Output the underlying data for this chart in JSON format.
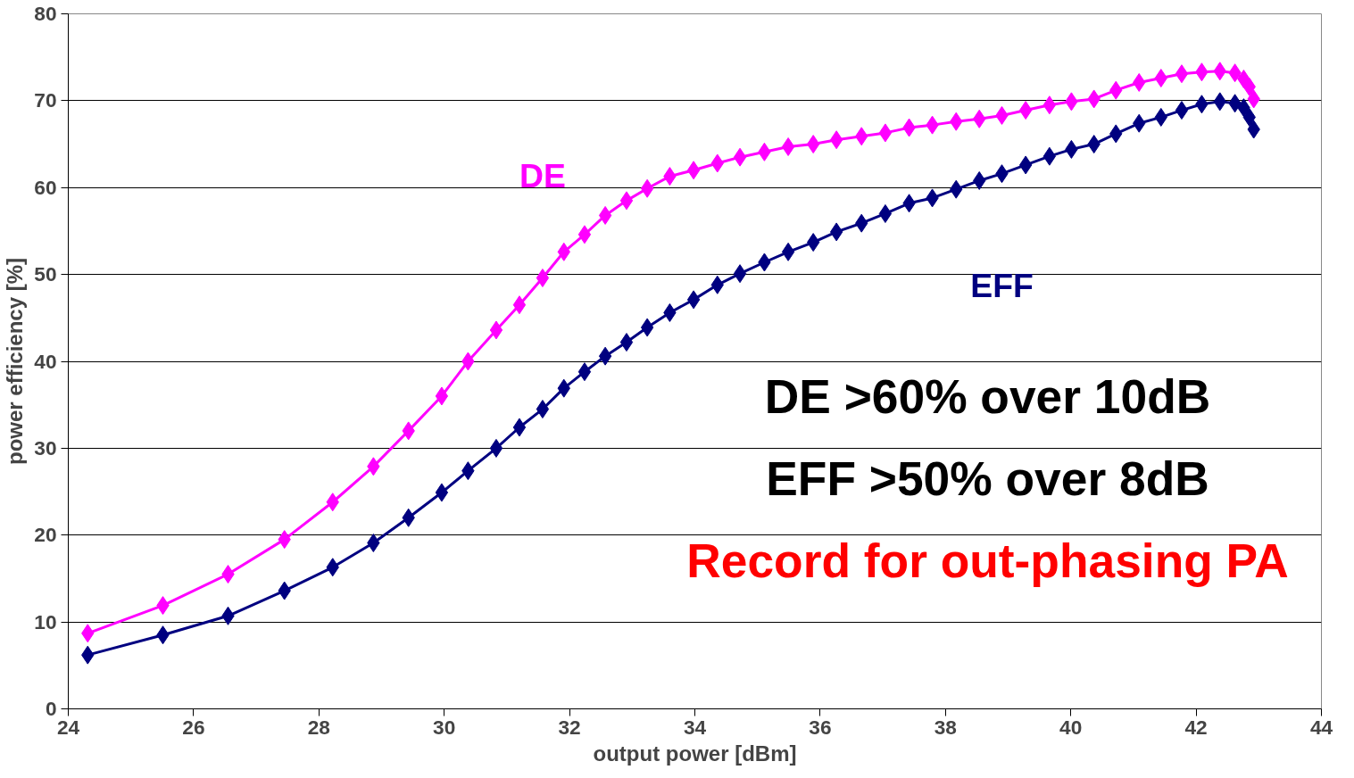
{
  "chart_data": {
    "type": "line",
    "xlabel": "output power [dBm]",
    "ylabel": "power efficiency [%]",
    "xlim": [
      24,
      44
    ],
    "xticks": [
      24,
      26,
      28,
      30,
      32,
      34,
      36,
      38,
      40,
      42,
      44
    ],
    "ylim": [
      0,
      80
    ],
    "yticks": [
      0,
      10,
      20,
      30,
      40,
      50,
      60,
      70,
      80
    ],
    "grid": "y",
    "marker": "diamond",
    "line_style": "solid",
    "series": [
      {
        "name": "DE",
        "color": "#ff00ff",
        "x": [
          24.31,
          25.51,
          26.55,
          27.45,
          28.22,
          28.87,
          29.43,
          29.96,
          30.38,
          30.83,
          31.2,
          31.57,
          31.91,
          32.24,
          32.57,
          32.91,
          33.24,
          33.6,
          33.98,
          34.36,
          34.72,
          35.11,
          35.49,
          35.89,
          36.26,
          36.66,
          37.04,
          37.42,
          37.79,
          38.17,
          38.54,
          38.9,
          39.28,
          39.66,
          40.01,
          40.37,
          40.72,
          41.09,
          41.44,
          41.77,
          42.09,
          42.38,
          42.62,
          42.76,
          42.85,
          42.92
        ],
        "values": [
          8.7,
          11.9,
          15.5,
          19.5,
          23.8,
          27.9,
          32.0,
          36.0,
          40.0,
          43.6,
          46.5,
          49.6,
          52.6,
          54.6,
          56.8,
          58.5,
          59.9,
          61.3,
          62.0,
          62.8,
          63.5,
          64.1,
          64.7,
          65.0,
          65.5,
          65.9,
          66.3,
          66.9,
          67.2,
          67.6,
          67.9,
          68.3,
          68.9,
          69.5,
          69.9,
          70.2,
          71.2,
          72.1,
          72.6,
          73.1,
          73.3,
          73.4,
          73.2,
          72.5,
          71.6,
          70.2
        ]
      },
      {
        "name": "EFF",
        "color": "#000080",
        "x": [
          24.31,
          25.51,
          26.55,
          27.45,
          28.22,
          28.87,
          29.43,
          29.96,
          30.38,
          30.83,
          31.2,
          31.57,
          31.91,
          32.24,
          32.57,
          32.91,
          33.24,
          33.6,
          33.98,
          34.36,
          34.72,
          35.11,
          35.49,
          35.89,
          36.26,
          36.66,
          37.04,
          37.42,
          37.79,
          38.17,
          38.54,
          38.9,
          39.28,
          39.66,
          40.01,
          40.37,
          40.72,
          41.09,
          41.44,
          41.77,
          42.09,
          42.38,
          42.62,
          42.76,
          42.85,
          42.92
        ],
        "values": [
          6.2,
          8.5,
          10.7,
          13.6,
          16.3,
          19.1,
          22.0,
          24.9,
          27.4,
          30.0,
          32.4,
          34.5,
          36.9,
          38.8,
          40.6,
          42.2,
          43.9,
          45.6,
          47.1,
          48.8,
          50.1,
          51.4,
          52.6,
          53.7,
          54.9,
          55.9,
          57.0,
          58.2,
          58.8,
          59.8,
          60.8,
          61.6,
          62.6,
          63.6,
          64.4,
          65.0,
          66.2,
          67.4,
          68.1,
          68.9,
          69.6,
          69.9,
          69.7,
          69.2,
          68.1,
          66.7
        ]
      }
    ],
    "annotations": [
      "DE >60% over 10dB",
      "EFF >50% over 8dB",
      "Record for out-phasing PA"
    ]
  }
}
